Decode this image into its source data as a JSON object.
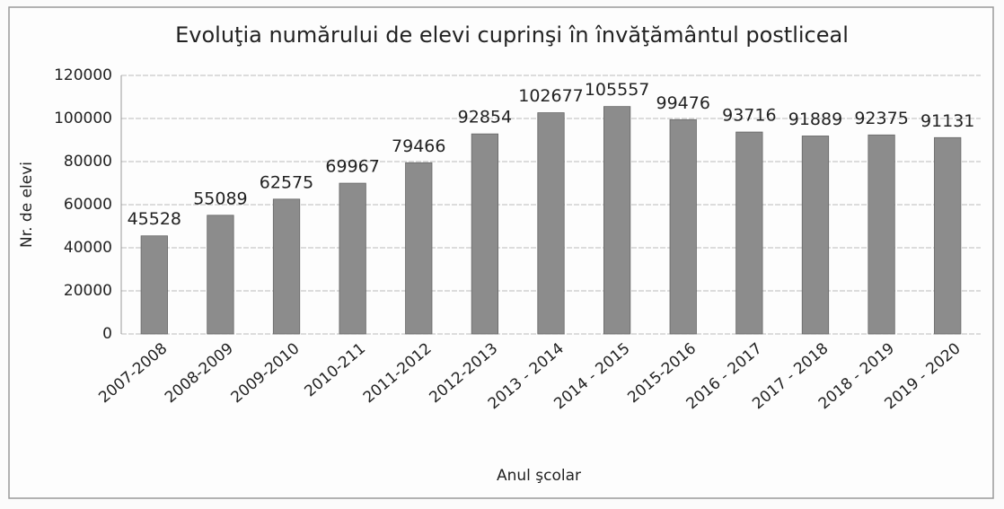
{
  "chart_data": {
    "type": "bar",
    "title": "Evoluţia numărului de elevi cuprinşi în învăţământul postliceal",
    "x_label": "Anul şcolar",
    "y_label": "Nr. de elevi",
    "categories": [
      "2007-2008",
      "2008-2009",
      "2009-2010",
      "2010-211",
      "2011-2012",
      "2012-2013",
      "2013 - 2014",
      "2014 - 2015",
      "2015-2016",
      "2016 - 2017",
      "2017 - 2018",
      "2018 - 2019",
      "2019 - 2020"
    ],
    "values": [
      45528,
      55089,
      62575,
      69967,
      79466,
      92854,
      102677,
      105557,
      99476,
      93716,
      91889,
      92375,
      91131
    ],
    "color": "#8c8c8c",
    "ylim": [
      0,
      120000
    ],
    "yticks": [
      0,
      20000,
      40000,
      60000,
      80000,
      100000,
      120000
    ],
    "grid": true
  }
}
